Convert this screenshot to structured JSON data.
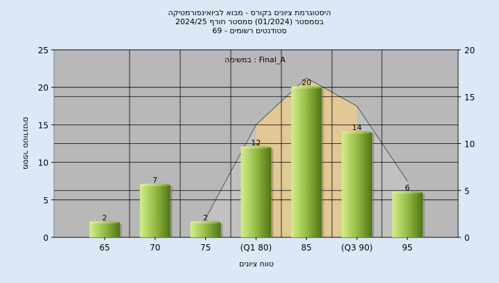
{
  "colors": {
    "background": "#dbe8f6",
    "plot_bg": "#b8b8b8",
    "bar_light": "#d4ee8c",
    "bar_dark": "#4e7512",
    "q_band": "#ffc857",
    "curve_fill": "#c9c9c9",
    "gridline": "#000000"
  },
  "chart_data": {
    "type": "bar",
    "title_lines": [
      "היסטוגרמת ציונים בקורס - מבוא לביואינפורמטיקה",
      "בסמסטר  (01/2024)  סמסטר חורף  2024/25",
      "סטודנטים רשומים - 69"
    ],
    "annotation": "במשימה : Final_A",
    "xlabel": "טווח ציונים",
    "ylabel": "מספר סטודנטים",
    "categories": [
      "65",
      "70",
      "75",
      "(Q1 80)",
      "85",
      "(Q3 90)",
      "95"
    ],
    "values": [
      2,
      7,
      2,
      12,
      20,
      14,
      6
    ],
    "value_labels": [
      "2",
      "7",
      "2",
      "12",
      "20",
      "14",
      "6"
    ],
    "ylim": [
      0,
      25
    ],
    "y_ticks": [
      "0",
      "5",
      "10",
      "15",
      "20",
      "25"
    ],
    "y2lim": [
      0,
      20
    ],
    "y2_ticks": [
      "0",
      "5",
      "10",
      "15",
      "20"
    ],
    "grid": true,
    "distribution_curve": [
      {
        "x": "75",
        "y": 2
      },
      {
        "x": "(Q1 80)",
        "y": 12
      },
      {
        "x": "85",
        "y": 17
      },
      {
        "x": "(Q3 90)",
        "y": 14
      },
      {
        "x": "95",
        "y": 6
      }
    ],
    "q_band": {
      "from": "(Q1 80)",
      "to": "(Q3 90)"
    }
  }
}
